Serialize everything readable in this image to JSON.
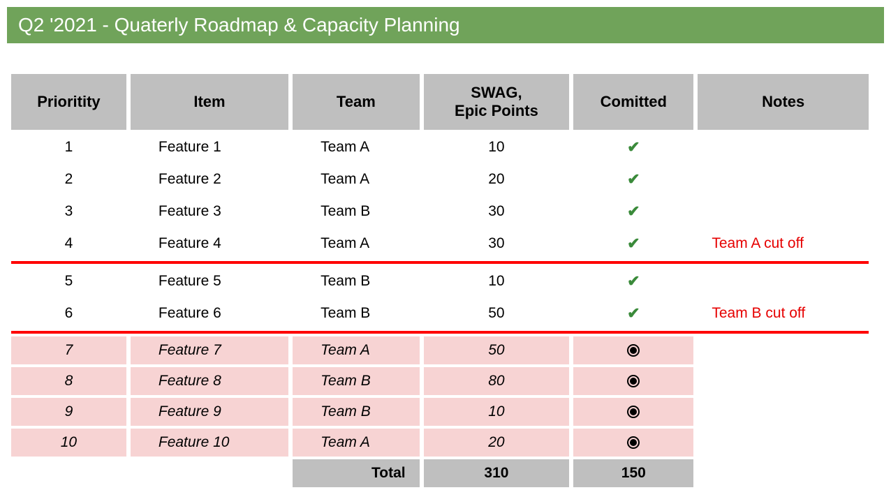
{
  "title": "Q2 '2021 - Quaterly Roadmap & Capacity Planning",
  "colors": {
    "header_bg": "#70a35a",
    "header_text": "#ffffff",
    "th_bg": "#bfbfbf",
    "pink_bg": "#f7d3d3",
    "cutoff_red": "#ff0000",
    "note_red": "#e60000",
    "check_green": "#3a8a3a"
  },
  "columns": [
    "Prioritity",
    "Item",
    "Team",
    "SWAG,\nEpic Points",
    "Comitted",
    "Notes"
  ],
  "rows": [
    {
      "priority": 1,
      "item": "Feature 1",
      "team": "Team A",
      "swag": 10,
      "committed": "check",
      "note": "",
      "style": "normal",
      "cutoff_after": false
    },
    {
      "priority": 2,
      "item": "Feature 2",
      "team": "Team A",
      "swag": 20,
      "committed": "check",
      "note": "",
      "style": "normal",
      "cutoff_after": false
    },
    {
      "priority": 3,
      "item": "Feature 3",
      "team": "Team B",
      "swag": 30,
      "committed": "check",
      "note": "",
      "style": "normal",
      "cutoff_after": false
    },
    {
      "priority": 4,
      "item": "Feature 4",
      "team": "Team A",
      "swag": 30,
      "committed": "check",
      "note": "Team A cut off",
      "style": "normal",
      "cutoff_after": true
    },
    {
      "priority": 5,
      "item": "Feature 5",
      "team": "Team B",
      "swag": 10,
      "committed": "check",
      "note": "",
      "style": "normal",
      "cutoff_after": false
    },
    {
      "priority": 6,
      "item": "Feature 6",
      "team": "Team B",
      "swag": 50,
      "committed": "check",
      "note": "Team B cut off",
      "style": "normal",
      "cutoff_after": true
    },
    {
      "priority": 7,
      "item": "Feature 7",
      "team": "Team A",
      "swag": 50,
      "committed": "bullet",
      "note": "",
      "style": "pink",
      "cutoff_after": false
    },
    {
      "priority": 8,
      "item": "Feature 8",
      "team": "Team B",
      "swag": 80,
      "committed": "bullet",
      "note": "",
      "style": "pink",
      "cutoff_after": false
    },
    {
      "priority": 9,
      "item": "Feature 9",
      "team": "Team B",
      "swag": 10,
      "committed": "bullet",
      "note": "",
      "style": "pink",
      "cutoff_after": false
    },
    {
      "priority": 10,
      "item": "Feature 10",
      "team": "Team A",
      "swag": 20,
      "committed": "bullet",
      "note": "",
      "style": "pink",
      "cutoff_after": false
    }
  ],
  "total": {
    "label": "Total",
    "swag": 310,
    "committed": 150
  }
}
